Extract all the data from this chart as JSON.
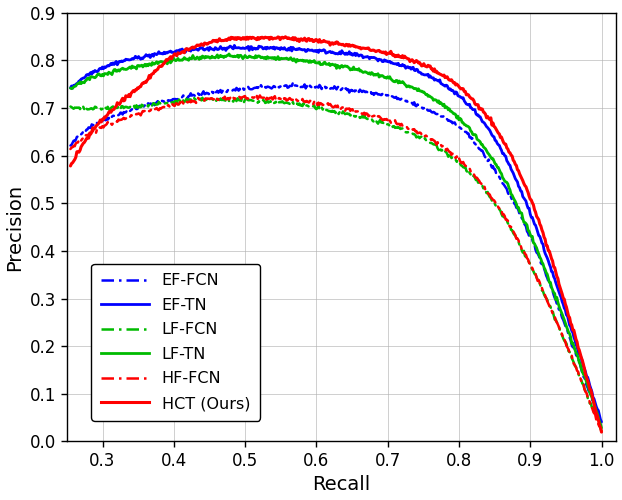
{
  "title": "",
  "xlabel": "Recall",
  "ylabel": "Precision",
  "xlim": [
    0.25,
    1.02
  ],
  "ylim": [
    0.0,
    0.9
  ],
  "xticks": [
    0.3,
    0.4,
    0.5,
    0.6,
    0.7,
    0.8,
    0.9,
    1.0
  ],
  "yticks": [
    0.0,
    0.1,
    0.2,
    0.3,
    0.4,
    0.5,
    0.6,
    0.7,
    0.8,
    0.9
  ],
  "background_color": "#ffffff",
  "grid_color": "#b0b0b0",
  "curves": {
    "EF-FCN": {
      "color": "#0000ff",
      "linestyle": "dashdot",
      "linewidth": 1.8,
      "points_r": [
        0.255,
        0.28,
        0.32,
        0.36,
        0.4,
        0.44,
        0.48,
        0.52,
        0.56,
        0.6,
        0.65,
        0.7,
        0.75,
        0.8,
        0.85,
        0.9,
        0.95,
        1.0
      ],
      "points_p": [
        0.62,
        0.658,
        0.685,
        0.705,
        0.718,
        0.73,
        0.737,
        0.742,
        0.745,
        0.744,
        0.738,
        0.725,
        0.7,
        0.66,
        0.57,
        0.43,
        0.24,
        0.03
      ]
    },
    "EF-TN": {
      "color": "#0000ff",
      "linestyle": "solid",
      "linewidth": 2.0,
      "points_r": [
        0.255,
        0.28,
        0.32,
        0.36,
        0.4,
        0.44,
        0.48,
        0.52,
        0.56,
        0.6,
        0.65,
        0.7,
        0.75,
        0.8,
        0.85,
        0.9,
        0.95,
        1.0
      ],
      "points_p": [
        0.74,
        0.77,
        0.795,
        0.808,
        0.818,
        0.823,
        0.826,
        0.826,
        0.824,
        0.82,
        0.812,
        0.797,
        0.772,
        0.725,
        0.635,
        0.48,
        0.27,
        0.04
      ]
    },
    "LF-FCN": {
      "color": "#00bb00",
      "linestyle": "dashdot",
      "linewidth": 1.8,
      "points_r": [
        0.255,
        0.28,
        0.32,
        0.36,
        0.4,
        0.44,
        0.48,
        0.52,
        0.56,
        0.6,
        0.65,
        0.7,
        0.75,
        0.8,
        0.85,
        0.9,
        0.95,
        1.0
      ],
      "points_p": [
        0.7,
        0.698,
        0.7,
        0.705,
        0.712,
        0.718,
        0.716,
        0.714,
        0.71,
        0.7,
        0.685,
        0.665,
        0.635,
        0.585,
        0.5,
        0.37,
        0.205,
        0.02
      ]
    },
    "LF-TN": {
      "color": "#00bb00",
      "linestyle": "solid",
      "linewidth": 2.0,
      "points_r": [
        0.255,
        0.28,
        0.32,
        0.36,
        0.4,
        0.44,
        0.48,
        0.52,
        0.56,
        0.6,
        0.65,
        0.7,
        0.75,
        0.8,
        0.85,
        0.9,
        0.95,
        1.0
      ],
      "points_p": [
        0.74,
        0.76,
        0.778,
        0.79,
        0.8,
        0.805,
        0.808,
        0.806,
        0.802,
        0.795,
        0.782,
        0.763,
        0.732,
        0.678,
        0.585,
        0.435,
        0.245,
        0.03
      ]
    },
    "HF-FCN": {
      "color": "#ff0000",
      "linestyle": "dashdot",
      "linewidth": 1.8,
      "points_r": [
        0.255,
        0.28,
        0.32,
        0.36,
        0.4,
        0.44,
        0.48,
        0.52,
        0.56,
        0.6,
        0.65,
        0.7,
        0.75,
        0.8,
        0.85,
        0.9,
        0.95,
        1.0
      ],
      "points_p": [
        0.615,
        0.645,
        0.672,
        0.692,
        0.707,
        0.717,
        0.721,
        0.722,
        0.718,
        0.71,
        0.695,
        0.673,
        0.643,
        0.592,
        0.504,
        0.372,
        0.205,
        0.02
      ]
    },
    "HCT (Ours)": {
      "color": "#ff0000",
      "linestyle": "solid",
      "linewidth": 2.2,
      "points_r": [
        0.255,
        0.28,
        0.32,
        0.36,
        0.4,
        0.44,
        0.48,
        0.52,
        0.56,
        0.6,
        0.65,
        0.7,
        0.75,
        0.8,
        0.85,
        0.9,
        0.95,
        1.0
      ],
      "points_p": [
        0.577,
        0.64,
        0.705,
        0.755,
        0.81,
        0.832,
        0.845,
        0.847,
        0.845,
        0.84,
        0.83,
        0.815,
        0.79,
        0.745,
        0.66,
        0.51,
        0.285,
        0.02
      ]
    }
  },
  "legend_order": [
    "EF-FCN",
    "EF-TN",
    "LF-FCN",
    "LF-TN",
    "HF-FCN",
    "HCT (Ours)"
  ]
}
